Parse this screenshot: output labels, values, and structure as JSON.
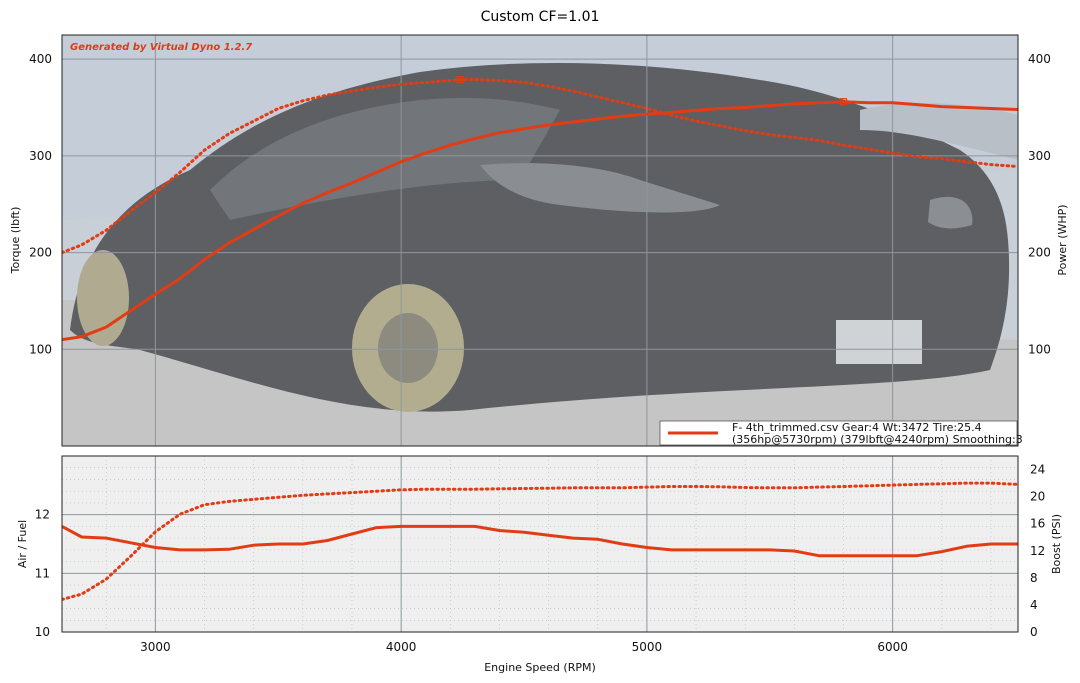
{
  "chart_data": [
    {
      "type": "line",
      "title": "Custom CF=1.01",
      "watermark": "Generated by Virtual Dyno 1.2.7",
      "xlabel": "Engine Speed (RPM)",
      "ylabel_left": "Torque (lbft)",
      "ylabel_right": "Power (WHP)",
      "xlim": [
        2620,
        6510
      ],
      "ylim_left": [
        0,
        425
      ],
      "ylim_right": [
        0,
        425
      ],
      "grid": true,
      "x_ticks": [
        3000,
        4000,
        5000,
        6000
      ],
      "y_ticks_left": [
        100,
        200,
        300,
        400
      ],
      "y_ticks_right": [
        100,
        200,
        300,
        400
      ],
      "legend_position": "bottom-right",
      "legend_lines": [
        "F- 4th_trimmed.csv Gear:4 Wt:3472 Tire:25.4",
        "(356hp@5730rpm) (379lbft@4240rpm) Smoothing:3"
      ],
      "series_color": "#e23c14",
      "background_photo": "car rear three-quarter view",
      "series": [
        {
          "axis": "right",
          "style": "solid",
          "x": [
            2620,
            2700,
            2800,
            2900,
            3000,
            3100,
            3200,
            3300,
            3400,
            3500,
            3600,
            3700,
            3800,
            3900,
            4000,
            4100,
            4200,
            4300,
            4400,
            4500,
            4600,
            4700,
            4800,
            4900,
            5000,
            5100,
            5200,
            5300,
            5400,
            5500,
            5600,
            5700,
            5800,
            5900,
            6000,
            6100,
            6200,
            6300,
            6400,
            6510
          ],
          "values": [
            110,
            113,
            123,
            140,
            157,
            173,
            193,
            210,
            224,
            238,
            251,
            262,
            272,
            283,
            294,
            303,
            311,
            318,
            324,
            328,
            332,
            335,
            338,
            341,
            343,
            345,
            347,
            349,
            350,
            352,
            354,
            355,
            356,
            355,
            355,
            353,
            351,
            350,
            349,
            348
          ]
        },
        {
          "axis": "left",
          "style": "dotted",
          "x": [
            2620,
            2700,
            2800,
            2900,
            3000,
            3100,
            3200,
            3300,
            3400,
            3500,
            3600,
            3700,
            3800,
            3900,
            4000,
            4100,
            4200,
            4240,
            4300,
            4400,
            4500,
            4600,
            4700,
            4800,
            4900,
            5000,
            5100,
            5200,
            5300,
            5400,
            5500,
            5600,
            5700,
            5800,
            5900,
            6000,
            6100,
            6200,
            6300,
            6400,
            6510
          ],
          "values": [
            200,
            208,
            223,
            243,
            262,
            283,
            306,
            323,
            336,
            349,
            357,
            363,
            367,
            371,
            374,
            376,
            378,
            379,
            379,
            378,
            376,
            372,
            367,
            361,
            355,
            349,
            342,
            336,
            331,
            326,
            322,
            319,
            316,
            311,
            307,
            303,
            299,
            297,
            294,
            291,
            289
          ]
        }
      ]
    },
    {
      "type": "line",
      "xlabel": "Engine Speed (RPM)",
      "ylabel_left": "Air / Fuel",
      "ylabel_right": "Boost (PSI)",
      "xlim": [
        2620,
        6510
      ],
      "ylim_left": [
        10,
        13
      ],
      "ylim_right": [
        0,
        26
      ],
      "grid": true,
      "x_ticks": [
        3000,
        4000,
        5000,
        6000
      ],
      "y_ticks_left": [
        10,
        11,
        12
      ],
      "y_ticks_right": [
        0,
        4,
        8,
        12,
        16,
        20,
        24
      ],
      "series": [
        {
          "axis": "left",
          "style": "solid",
          "x": [
            2620,
            2700,
            2800,
            2900,
            3000,
            3100,
            3200,
            3300,
            3400,
            3500,
            3600,
            3700,
            3800,
            3900,
            4000,
            4100,
            4200,
            4300,
            4400,
            4500,
            4600,
            4700,
            4800,
            4900,
            5000,
            5100,
            5200,
            5300,
            5400,
            5500,
            5600,
            5700,
            5800,
            5900,
            6000,
            6100,
            6200,
            6300,
            6400,
            6510
          ],
          "values": [
            11.8,
            11.62,
            11.6,
            11.52,
            11.44,
            11.4,
            11.4,
            11.41,
            11.48,
            11.5,
            11.5,
            11.56,
            11.67,
            11.78,
            11.8,
            11.8,
            11.8,
            11.8,
            11.73,
            11.7,
            11.65,
            11.6,
            11.58,
            11.5,
            11.44,
            11.4,
            11.4,
            11.4,
            11.4,
            11.4,
            11.38,
            11.3,
            11.3,
            11.3,
            11.3,
            11.3,
            11.37,
            11.46,
            11.5,
            11.5
          ]
        },
        {
          "axis": "right",
          "style": "dotted",
          "x": [
            2620,
            2700,
            2800,
            2900,
            3000,
            3100,
            3200,
            3300,
            3400,
            3500,
            3600,
            3700,
            3800,
            3900,
            4000,
            4100,
            4200,
            4300,
            4400,
            4500,
            4600,
            4700,
            4800,
            4900,
            5000,
            5100,
            5200,
            5300,
            5400,
            5500,
            5600,
            5700,
            5800,
            5900,
            6000,
            6100,
            6200,
            6300,
            6400,
            6510
          ],
          "values": [
            4.8,
            5.6,
            7.8,
            11.2,
            14.8,
            17.4,
            18.8,
            19.3,
            19.6,
            19.9,
            20.2,
            20.4,
            20.6,
            20.8,
            21.0,
            21.1,
            21.1,
            21.1,
            21.15,
            21.2,
            21.25,
            21.3,
            21.3,
            21.3,
            21.4,
            21.5,
            21.5,
            21.45,
            21.35,
            21.3,
            21.3,
            21.4,
            21.5,
            21.6,
            21.7,
            21.8,
            21.9,
            22.0,
            22.0,
            21.8
          ]
        }
      ]
    }
  ]
}
